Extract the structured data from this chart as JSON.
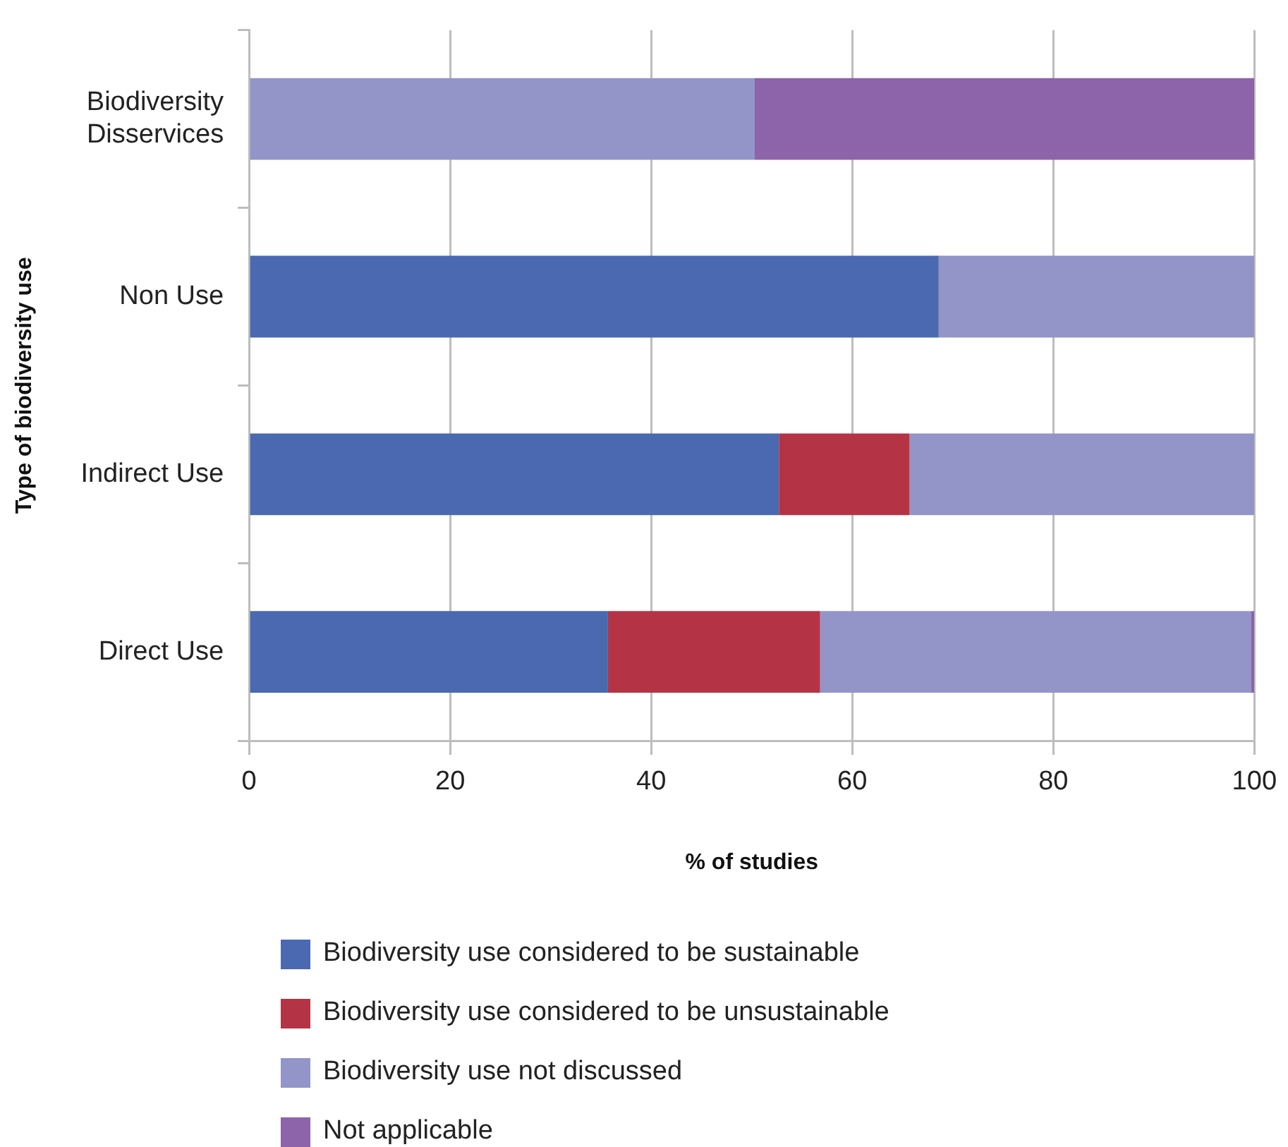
{
  "chart_data": {
    "type": "bar",
    "orientation": "horizontal",
    "stacked": true,
    "xlabel": "% of studies",
    "ylabel": "Type of biodiversity use",
    "categories": [
      "Biodiversity Disservices",
      "Non Use",
      "Indirect Use",
      "Direct Use"
    ],
    "series": [
      {
        "name": "Biodiversity use considered to be sustainable",
        "color": "#4a69b0",
        "values": [
          0,
          68.6,
          52.7,
          35.7
        ]
      },
      {
        "name": "Biodiversity use considered to be unsustainable",
        "color": "#b43446",
        "values": [
          0,
          0,
          13,
          21.1
        ]
      },
      {
        "name": "Biodiversity use not discussed",
        "color": "#9394c8",
        "values": [
          50.3,
          31.4,
          34.3,
          42.9
        ]
      },
      {
        "name": "Not applicable",
        "color": "#8d63a9",
        "values": [
          49.7,
          0,
          0,
          0.3
        ]
      }
    ],
    "xlim": [
      0,
      100
    ],
    "xticks": [
      0,
      20,
      40,
      60,
      80,
      100
    ],
    "grid": "x",
    "legend": "bottom"
  }
}
